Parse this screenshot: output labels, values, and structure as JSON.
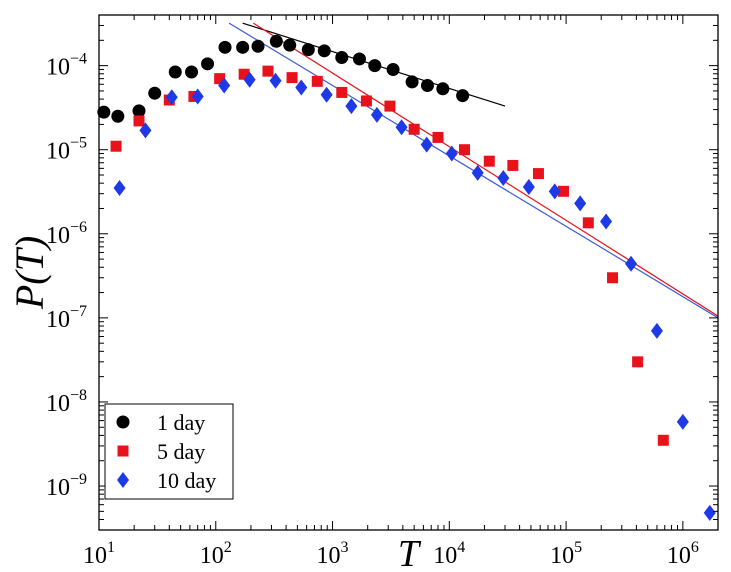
{
  "chart_data": {
    "type": "scatter",
    "title": "",
    "xlabel": "T",
    "ylabel": "P(T)",
    "xscale": "log",
    "yscale": "log",
    "xlim": [
      10,
      2000000
    ],
    "ylim": [
      3e-10,
      0.0004
    ],
    "x_ticks": [
      {
        "value": 10,
        "base": "10",
        "exp": "1"
      },
      {
        "value": 100,
        "base": "10",
        "exp": "2"
      },
      {
        "value": 1000,
        "base": "10",
        "exp": "3"
      },
      {
        "value": 10000,
        "base": "10",
        "exp": "4"
      },
      {
        "value": 100000,
        "base": "10",
        "exp": "5"
      },
      {
        "value": 1000000,
        "base": "10",
        "exp": "6"
      }
    ],
    "y_ticks": [
      {
        "value": 1e-09,
        "base": "10",
        "exp": "−9"
      },
      {
        "value": 1e-08,
        "base": "10",
        "exp": "−8"
      },
      {
        "value": 1e-07,
        "base": "10",
        "exp": "−7"
      },
      {
        "value": 1e-06,
        "base": "10",
        "exp": "−6"
      },
      {
        "value": 1e-05,
        "base": "10",
        "exp": "−5"
      },
      {
        "value": 0.0001,
        "base": "10",
        "exp": "−4"
      }
    ],
    "legend_position": "bottom-left",
    "series": [
      {
        "name": "1 day",
        "marker": "circle",
        "color": "#000000",
        "points": [
          [
            11,
            2.8e-05
          ],
          [
            14.5,
            2.5e-05
          ],
          [
            22,
            2.9e-05
          ],
          [
            30,
            4.7e-05
          ],
          [
            45,
            8.4e-05
          ],
          [
            62,
            8.4e-05
          ],
          [
            85,
            0.000105
          ],
          [
            120,
            0.000165
          ],
          [
            170,
            0.000165
          ],
          [
            230,
            0.00017
          ],
          [
            330,
            0.000195
          ],
          [
            430,
            0.000175
          ],
          [
            620,
            0.000155
          ],
          [
            850,
            0.00015
          ],
          [
            1200,
            0.000125
          ],
          [
            1700,
            0.00012
          ],
          [
            2300,
            0.0001
          ],
          [
            3300,
            9e-05
          ],
          [
            4800,
            6.4e-05
          ],
          [
            6500,
            5.8e-05
          ],
          [
            8800,
            5.3e-05
          ],
          [
            13000,
            4.4e-05
          ]
        ]
      },
      {
        "name": "5 day",
        "marker": "square",
        "color": "#e8121b",
        "points": [
          [
            14,
            1.1e-05
          ],
          [
            22,
            2.2e-05
          ],
          [
            40,
            3.9e-05
          ],
          [
            65,
            4.3e-05
          ],
          [
            108,
            7e-05
          ],
          [
            175,
            7.9e-05
          ],
          [
            280,
            8.6e-05
          ],
          [
            450,
            7.2e-05
          ],
          [
            740,
            6.5e-05
          ],
          [
            1200,
            4.8e-05
          ],
          [
            1950,
            3.8e-05
          ],
          [
            3100,
            3.3e-05
          ],
          [
            5000,
            1.75e-05
          ],
          [
            8000,
            1.4e-05
          ],
          [
            13500,
            1e-05
          ],
          [
            22000,
            7.3e-06
          ],
          [
            35000,
            6.5e-06
          ],
          [
            58000,
            5.2e-06
          ],
          [
            95000,
            3.2e-06
          ],
          [
            155000,
            1.35e-06
          ],
          [
            250000,
            3e-07
          ],
          [
            410000,
            3e-08
          ],
          [
            680000,
            3.5e-09
          ]
        ]
      },
      {
        "name": "10 day",
        "marker": "diamond",
        "color": "#1e3ae6",
        "points": [
          [
            15,
            3.5e-06
          ],
          [
            25,
            1.7e-05
          ],
          [
            42,
            4.2e-05
          ],
          [
            70,
            4.3e-05
          ],
          [
            118,
            5.8e-05
          ],
          [
            195,
            6.8e-05
          ],
          [
            325,
            6.6e-05
          ],
          [
            540,
            5.5e-05
          ],
          [
            890,
            4.5e-05
          ],
          [
            1450,
            3.3e-05
          ],
          [
            2400,
            2.6e-05
          ],
          [
            3900,
            1.85e-05
          ],
          [
            6400,
            1.15e-05
          ],
          [
            10500,
            9e-06
          ],
          [
            17500,
            5.3e-06
          ],
          [
            29000,
            4.6e-06
          ],
          [
            48000,
            3.6e-06
          ],
          [
            80000,
            3.2e-06
          ],
          [
            132000,
            2.3e-06
          ],
          [
            220000,
            1.4e-06
          ],
          [
            360000,
            4.4e-07
          ],
          [
            600000,
            7e-08
          ],
          [
            1000000,
            5.8e-09
          ],
          [
            1700000,
            4.8e-10
          ]
        ]
      }
    ],
    "fit_lines": [
      {
        "name": "1 day fit",
        "color": "#000000",
        "from": [
          170,
          0.00032
        ],
        "to": [
          30000,
          3.3e-05
        ]
      },
      {
        "name": "5 day fit",
        "color": "#e8121b",
        "from": [
          210,
          0.00032
        ],
        "to": [
          2000000,
          1.05e-07
        ]
      },
      {
        "name": "10 day fit",
        "color": "#3a5ad8",
        "from": [
          130,
          0.00032
        ],
        "to": [
          2000000,
          1e-07
        ]
      }
    ]
  }
}
